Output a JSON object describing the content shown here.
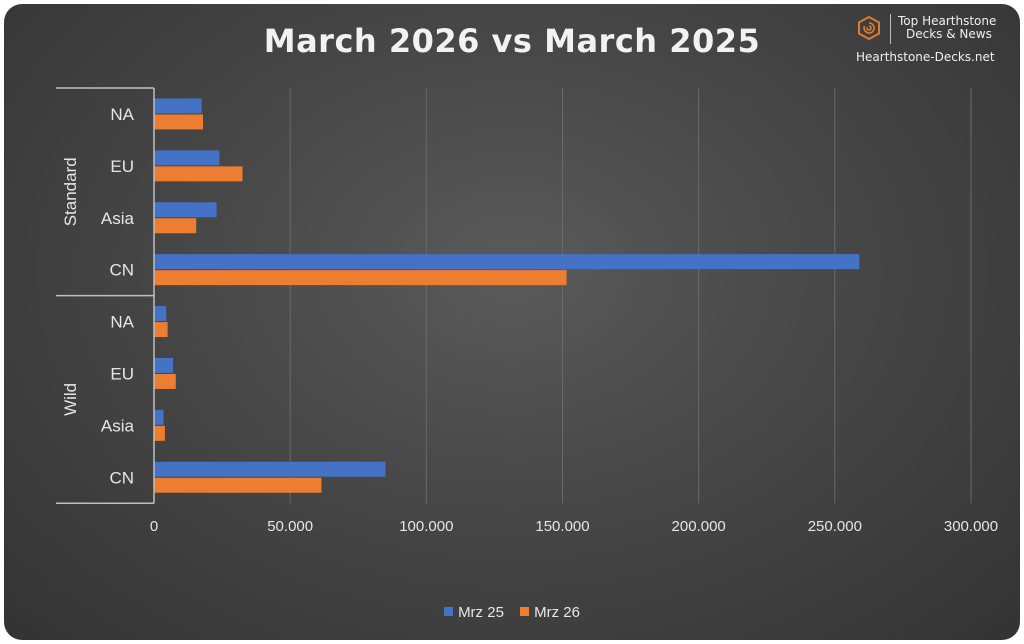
{
  "chart_data": {
    "type": "bar",
    "orientation": "horizontal",
    "title": "March 2026 vs March 2025",
    "groups": [
      {
        "name": "Standard",
        "categories": [
          "NA",
          "EU",
          "Asia",
          "CN"
        ]
      },
      {
        "name": "Wild",
        "categories": [
          "NA",
          "EU",
          "Asia",
          "CN"
        ]
      }
    ],
    "series": [
      {
        "name": "Mrz 25",
        "color": "#4472c4",
        "values": [
          17500,
          24000,
          23000,
          259000,
          4500,
          7000,
          3500,
          85000
        ]
      },
      {
        "name": "Mrz 26",
        "color": "#ed7d31",
        "values": [
          18000,
          32500,
          15500,
          151500,
          5000,
          8000,
          4000,
          61500
        ]
      }
    ],
    "xlim": [
      0,
      300000
    ],
    "xticks": [
      0,
      50000,
      100000,
      150000,
      200000,
      250000,
      300000
    ],
    "xtick_labels": [
      "0",
      "50.000",
      "100.000",
      "150.000",
      "200.000",
      "250.000",
      "300.000"
    ],
    "grid": true,
    "legend_position": "bottom"
  },
  "brand": {
    "line1": "Top Hearthstone",
    "line2": "Decks & News",
    "site": "Hearthstone-Decks.net",
    "logo_icon": "hexagon-swirl-icon",
    "logo_color": "#e07a2e"
  }
}
